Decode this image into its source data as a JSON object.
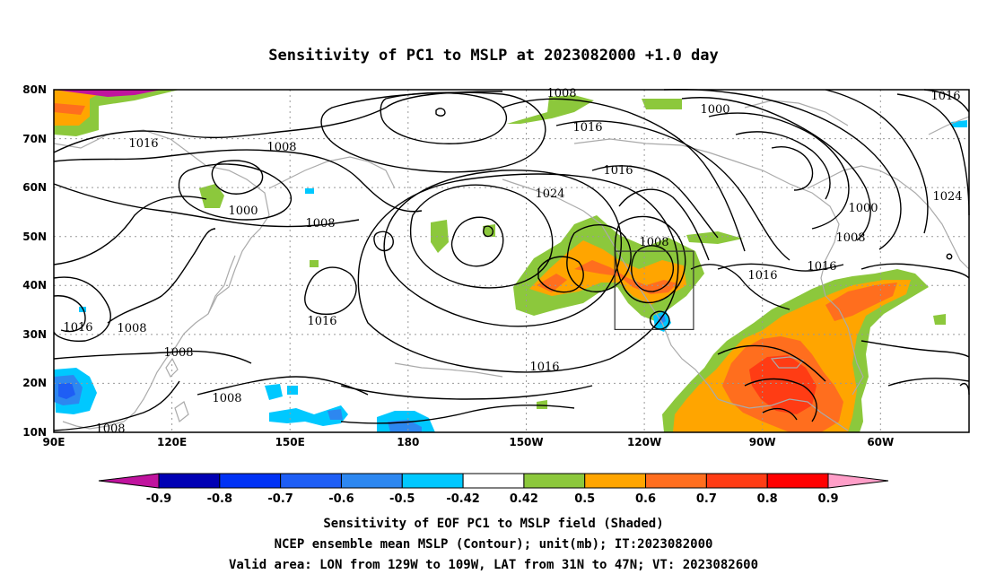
{
  "title": "Sensitivity of PC1 to MSLP at 2023082000 +1.0 day",
  "lat_ticks": [
    "80N",
    "70N",
    "60N",
    "50N",
    "40N",
    "30N",
    "20N",
    "10N"
  ],
  "lon_ticks": [
    "90E",
    "120E",
    "150E",
    "180",
    "150W",
    "120W",
    "90W",
    "60W"
  ],
  "contour_labels": [
    {
      "text": "1008"
    },
    {
      "text": "1016"
    },
    {
      "text": "1000"
    },
    {
      "text": "1016"
    },
    {
      "text": "1016"
    },
    {
      "text": "1008"
    },
    {
      "text": "1016"
    },
    {
      "text": "1024"
    },
    {
      "text": "1000"
    },
    {
      "text": "1008"
    },
    {
      "text": "1008"
    },
    {
      "text": "1016"
    },
    {
      "text": "1016"
    },
    {
      "text": "1024"
    },
    {
      "text": "1000"
    },
    {
      "text": "1008"
    },
    {
      "text": "1016"
    },
    {
      "text": "1016"
    },
    {
      "text": "1008"
    },
    {
      "text": "1016"
    },
    {
      "text": "1008"
    },
    {
      "text": "1008"
    },
    {
      "text": "1016"
    },
    {
      "text": "1008"
    }
  ],
  "colorbar": {
    "labels": [
      "-0.9",
      "-0.8",
      "-0.7",
      "-0.6",
      "-0.5",
      "-0.42",
      "0.42",
      "0.5",
      "0.6",
      "0.7",
      "0.8",
      "0.9"
    ],
    "colors": [
      "#c0139e",
      "#0000b4",
      "#0032f5",
      "#1e5ef5",
      "#2d87f0",
      "#00c8ff",
      "#ffffff",
      "#8cc83c",
      "#ffa500",
      "#ff6e1e",
      "#ff3c14",
      "#ff0000",
      "#ff9ec8"
    ]
  },
  "valid_box": {
    "lon_min": -129,
    "lon_max": -109,
    "lat_min": 31,
    "lat_max": 47
  },
  "caption": [
    "Sensitivity of EOF PC1 to MSLP field (Shaded)",
    "NCEP ensemble mean MSLP (Contour); unit(mb); IT:2023082000",
    "Valid area: LON from 129W to 109W, LAT from 31N to 47N; VT: 2023082600"
  ]
}
